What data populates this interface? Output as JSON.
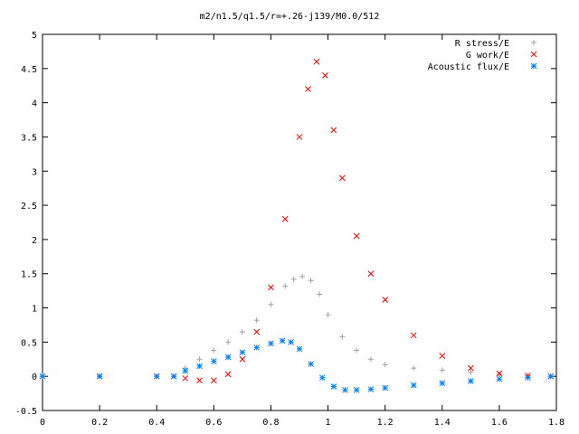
{
  "chart_data": {
    "type": "scatter",
    "title": "m2/n1.5/q1.5/r=+.26-j139/M0.0/512",
    "xlabel": "",
    "ylabel": "",
    "xlim": [
      0,
      1.8
    ],
    "ylim": [
      -0.5,
      5
    ],
    "x_ticks": [
      "0",
      "0.2",
      "0.4",
      "0.6",
      "0.8",
      "1",
      "1.2",
      "1.4",
      "1.6",
      "1.8"
    ],
    "y_ticks": [
      "-0.5",
      "0",
      "0.5",
      "1",
      "1.5",
      "2",
      "2.5",
      "3",
      "3.5",
      "4",
      "4.5",
      "5"
    ],
    "grid": false,
    "legend_position": "top-right",
    "series": [
      {
        "name": "R stress/E",
        "marker": "plus",
        "color": "#a0a0a0",
        "x": [
          0,
          0.2,
          0.4,
          0.46,
          0.5,
          0.55,
          0.6,
          0.65,
          0.7,
          0.75,
          0.8,
          0.85,
          0.88,
          0.91,
          0.94,
          0.97,
          1.0,
          1.05,
          1.1,
          1.15,
          1.2,
          1.3,
          1.4,
          1.5,
          1.6,
          1.7,
          1.78
        ],
        "y": [
          0,
          0,
          0,
          0.0,
          0.12,
          0.25,
          0.38,
          0.5,
          0.65,
          0.82,
          1.05,
          1.32,
          1.42,
          1.46,
          1.4,
          1.2,
          0.9,
          0.58,
          0.38,
          0.25,
          0.17,
          0.12,
          0.09,
          0.06,
          0.03,
          0.01,
          0.0
        ]
      },
      {
        "name": "G work/E",
        "marker": "cross",
        "color": "#ff0000",
        "x": [
          0,
          0.2,
          0.4,
          0.46,
          0.5,
          0.55,
          0.6,
          0.65,
          0.7,
          0.75,
          0.8,
          0.85,
          0.9,
          0.93,
          0.96,
          0.99,
          1.02,
          1.05,
          1.1,
          1.15,
          1.2,
          1.3,
          1.4,
          1.5,
          1.6,
          1.7,
          1.78
        ],
        "y": [
          0,
          0,
          0,
          0.0,
          -0.03,
          -0.06,
          -0.06,
          0.03,
          0.25,
          0.65,
          1.3,
          2.3,
          3.5,
          4.2,
          4.6,
          4.4,
          3.6,
          2.9,
          2.05,
          1.5,
          1.12,
          0.6,
          0.3,
          0.12,
          0.04,
          0.01,
          0.0
        ]
      },
      {
        "name": "Acoustic flux/E",
        "marker": "star",
        "color": "#0080ff",
        "x": [
          0,
          0.2,
          0.4,
          0.46,
          0.5,
          0.55,
          0.6,
          0.65,
          0.7,
          0.75,
          0.8,
          0.84,
          0.87,
          0.9,
          0.94,
          0.98,
          1.02,
          1.06,
          1.1,
          1.15,
          1.2,
          1.3,
          1.4,
          1.5,
          1.6,
          1.7,
          1.78
        ],
        "y": [
          0,
          0,
          0,
          0.0,
          0.08,
          0.15,
          0.22,
          0.28,
          0.35,
          0.42,
          0.48,
          0.52,
          0.5,
          0.4,
          0.18,
          -0.02,
          -0.15,
          -0.2,
          -0.2,
          -0.19,
          -0.17,
          -0.13,
          -0.1,
          -0.07,
          -0.04,
          -0.02,
          0.0
        ]
      }
    ]
  }
}
